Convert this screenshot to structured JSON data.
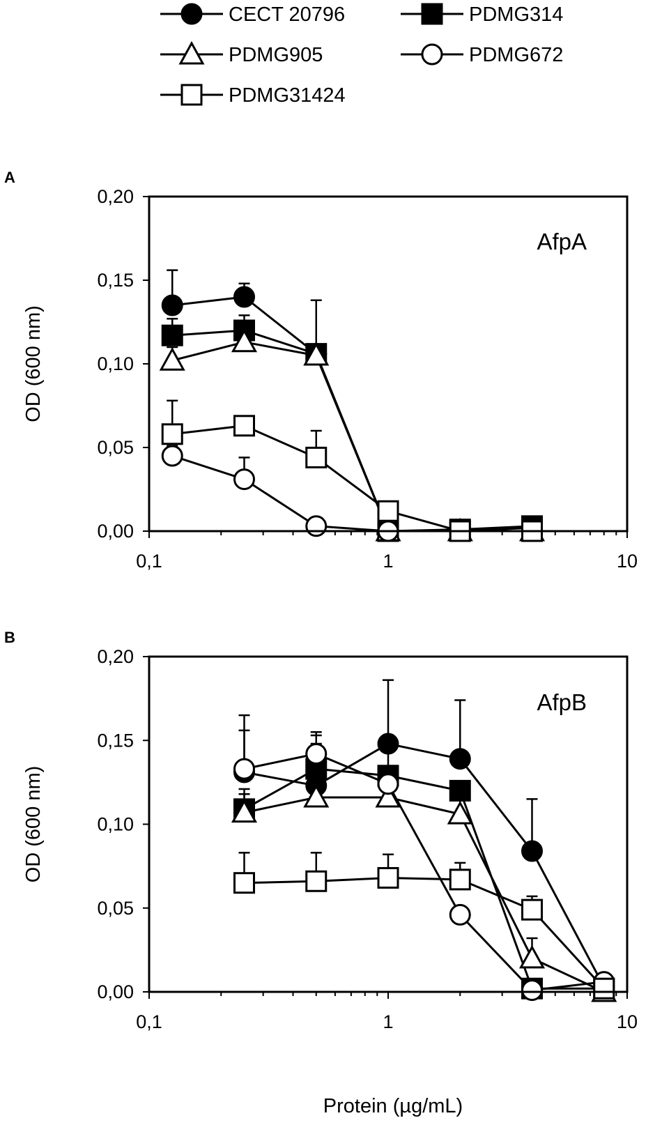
{
  "legend": [
    {
      "name": "CECT 20796",
      "marker": "filled-circle"
    },
    {
      "name": "PDMG314",
      "marker": "filled-square"
    },
    {
      "name": "PDMG905",
      "marker": "open-triangle"
    },
    {
      "name": "PDMG672",
      "marker": "open-circle"
    },
    {
      "name": "PDMG31424",
      "marker": "open-square"
    }
  ],
  "xlabel": "Protein (µg/mL)",
  "chart_data": [
    {
      "panel": "A",
      "type": "line",
      "title": "AfpA",
      "xscale": "log",
      "xlim": [
        0.1,
        10
      ],
      "xticks": [
        0.1,
        1,
        10
      ],
      "xtick_labels": [
        "0,1",
        "1",
        "10"
      ],
      "ylim": [
        0,
        0.2
      ],
      "yticks": [
        0,
        0.05,
        0.1,
        0.15,
        0.2
      ],
      "ytick_labels": [
        "0,00",
        "0,05",
        "0,10",
        "0,15",
        "0,20"
      ],
      "ylabel": "OD (600 nm)",
      "series": [
        {
          "name": "CECT 20796",
          "marker": "filled-circle",
          "x": [
            0.125,
            0.25,
            0.5,
            1,
            2,
            4
          ],
          "values": [
            0.135,
            0.14,
            0.106,
            0.0,
            0.0,
            0.002
          ],
          "errors": [
            0.021,
            0.008,
            0.032,
            0,
            0,
            0
          ]
        },
        {
          "name": "PDMG314",
          "marker": "filled-square",
          "x": [
            0.125,
            0.25,
            0.5,
            1,
            2,
            4
          ],
          "values": [
            0.117,
            0.12,
            0.106,
            0.0,
            0.001,
            0.003
          ],
          "errors": [
            0.01,
            0.009,
            0.0,
            0,
            0,
            0
          ]
        },
        {
          "name": "PDMG905",
          "marker": "open-triangle",
          "x": [
            0.125,
            0.25,
            0.5,
            1,
            2,
            4
          ],
          "values": [
            0.102,
            0.113,
            0.105,
            0.0,
            0.0,
            0.0
          ],
          "errors": [
            0.008,
            0.008,
            0.0,
            0,
            0,
            0
          ]
        },
        {
          "name": "PDMG672",
          "marker": "open-circle",
          "x": [
            0.125,
            0.25,
            0.5,
            1,
            2,
            4
          ],
          "values": [
            0.045,
            0.031,
            0.003,
            0.0,
            0.0,
            0.0
          ],
          "errors": [
            0.006,
            0.013,
            0,
            0,
            0,
            0
          ]
        },
        {
          "name": "PDMG31424",
          "marker": "open-square",
          "x": [
            0.125,
            0.25,
            0.5,
            1,
            2,
            4
          ],
          "values": [
            0.058,
            0.063,
            0.044,
            0.012,
            0.0,
            0.0
          ],
          "errors": [
            0.02,
            0.0,
            0.016,
            0,
            0,
            0
          ]
        }
      ]
    },
    {
      "panel": "B",
      "type": "line",
      "title": "AfpB",
      "xscale": "log",
      "xlim": [
        0.1,
        10
      ],
      "xticks": [
        0.1,
        1,
        10
      ],
      "xtick_labels": [
        "0,1",
        "1",
        "10"
      ],
      "ylim": [
        0,
        0.2
      ],
      "yticks": [
        0,
        0.05,
        0.1,
        0.15,
        0.2
      ],
      "ytick_labels": [
        "0,00",
        "0,05",
        "0,10",
        "0,15",
        "0,20"
      ],
      "ylabel": "OD (600 nm)",
      "series": [
        {
          "name": "CECT 20796",
          "marker": "filled-circle",
          "x": [
            0.25,
            0.5,
            1,
            2,
            4,
            8
          ],
          "values": [
            0.131,
            0.123,
            0.148,
            0.139,
            0.084,
            0.003
          ],
          "errors": [
            0.025,
            0.03,
            0.038,
            0.035,
            0.031,
            0
          ]
        },
        {
          "name": "PDMG314",
          "marker": "filled-square",
          "x": [
            0.25,
            0.5,
            1,
            2,
            4,
            8
          ],
          "values": [
            0.109,
            0.133,
            0.129,
            0.12,
            0.002,
            0.002
          ],
          "errors": [
            0.012,
            0.015,
            0.02,
            0.0,
            0.0,
            0
          ]
        },
        {
          "name": "PDMG905",
          "marker": "open-triangle",
          "x": [
            0.25,
            0.5,
            1,
            2,
            4,
            8
          ],
          "values": [
            0.107,
            0.116,
            0.116,
            0.106,
            0.02,
            0.0
          ],
          "errors": [
            0.011,
            0.022,
            0.012,
            0.012,
            0.012,
            0
          ]
        },
        {
          "name": "PDMG672",
          "marker": "open-circle",
          "x": [
            0.25,
            0.5,
            1,
            2,
            4,
            8
          ],
          "values": [
            0.133,
            0.142,
            0.124,
            0.046,
            0.001,
            0.006
          ],
          "errors": [
            0.032,
            0.013,
            0.0,
            0.0,
            0,
            0
          ]
        },
        {
          "name": "PDMG31424",
          "marker": "open-square",
          "x": [
            0.25,
            0.5,
            1,
            2,
            4,
            8
          ],
          "values": [
            0.065,
            0.066,
            0.068,
            0.067,
            0.049,
            0.002
          ],
          "errors": [
            0.018,
            0.017,
            0.014,
            0.01,
            0.008,
            0
          ]
        }
      ]
    }
  ]
}
